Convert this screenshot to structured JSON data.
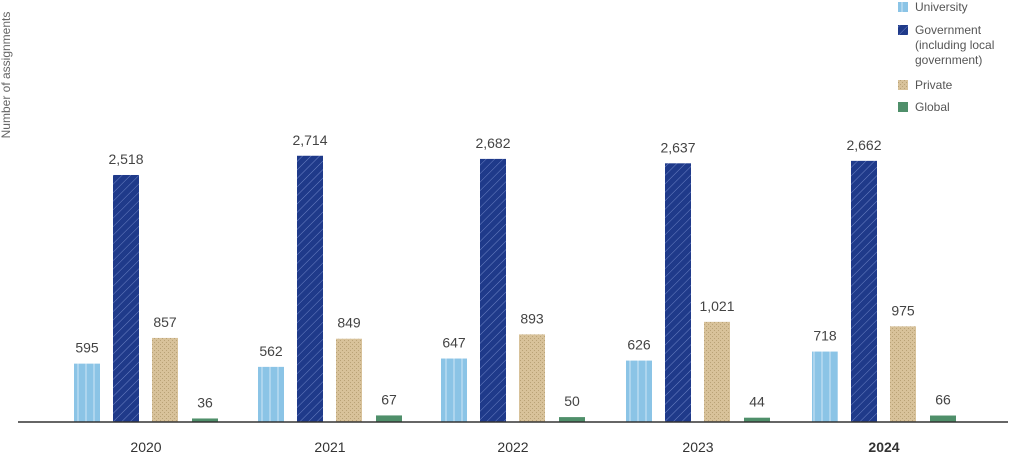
{
  "chart_data": {
    "type": "bar",
    "ylabel": "Number of assignments",
    "categories": [
      "2020",
      "2021",
      "2022",
      "2023",
      "2024"
    ],
    "highlight_category": "2024",
    "ylim": [
      0,
      3000
    ],
    "grid": false,
    "legend_position": "top-right",
    "series": [
      {
        "name": "University",
        "values": [
          595,
          562,
          647,
          626,
          718
        ],
        "labels": [
          "595",
          "562",
          "647",
          "626",
          "718"
        ],
        "color": "#8bc4e6",
        "pattern": "vertical-stripes"
      },
      {
        "name": "Government (including local government)",
        "legend_lines": [
          "Government",
          "(including local",
          "government)"
        ],
        "values": [
          2518,
          2714,
          2682,
          2637,
          2662
        ],
        "labels": [
          "2,518",
          "2,714",
          "2,682",
          "2,637",
          "2,662"
        ],
        "color": "#1f3a8a",
        "pattern": "diagonal-hatch"
      },
      {
        "name": "Private",
        "values": [
          857,
          849,
          893,
          1021,
          975
        ],
        "labels": [
          "857",
          "849",
          "893",
          "1,021",
          "975"
        ],
        "color": "#d8c29a",
        "pattern": "dots"
      },
      {
        "name": "Global",
        "values": [
          36,
          67,
          50,
          44,
          66
        ],
        "labels": [
          "36",
          "67",
          "50",
          "44",
          "66"
        ],
        "color": "#4f8f6a",
        "pattern": "solid"
      }
    ]
  }
}
